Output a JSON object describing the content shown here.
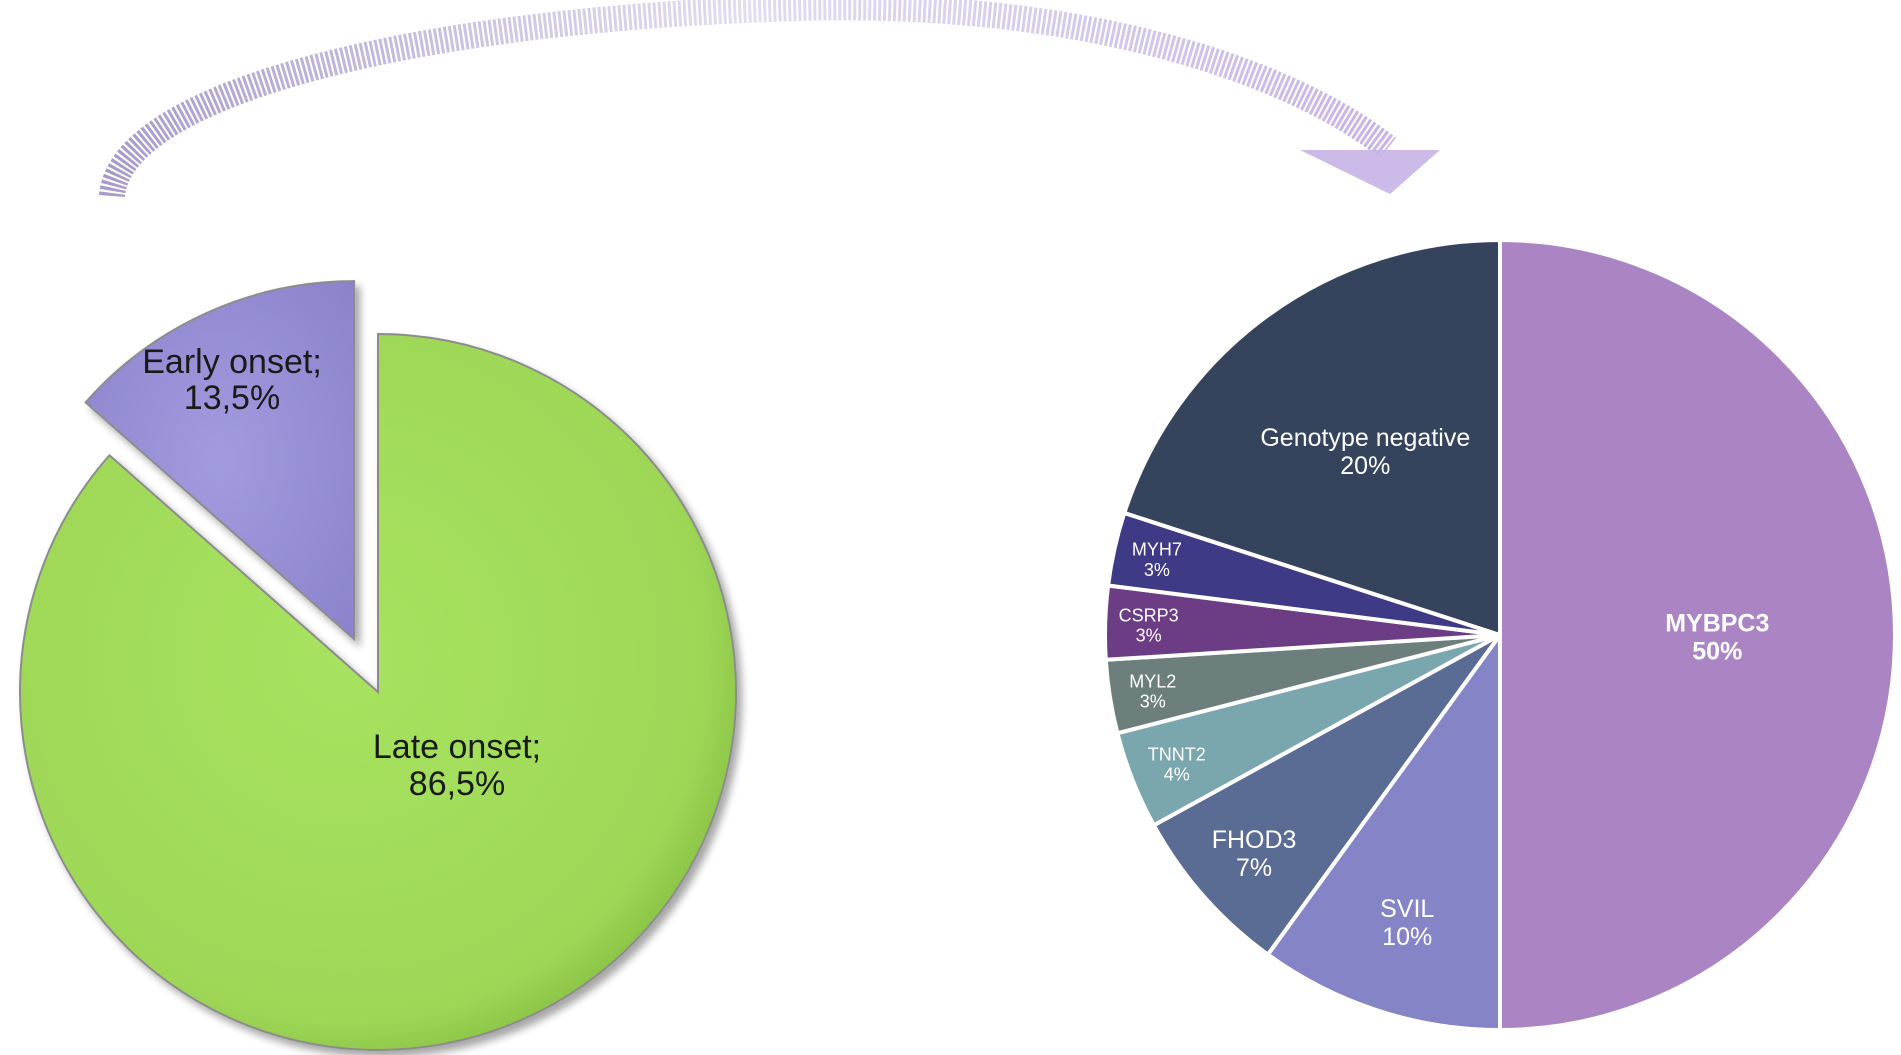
{
  "chart_data": [
    {
      "type": "pie",
      "title": "",
      "labels": [
        "Early onset",
        "Late onset"
      ],
      "values": [
        13.5,
        86.5
      ],
      "display_values": [
        "13,5%",
        "86,5%"
      ],
      "slice_labels": [
        "Early onset;",
        "Late onset;"
      ],
      "colors": [
        "#9d96dc",
        "#a3df5a"
      ],
      "exploded": [
        "Early onset"
      ],
      "style": "3d-beveled",
      "legend": "none"
    },
    {
      "type": "pie",
      "title": "",
      "labels": [
        "MYBPC3",
        "SVIL",
        "FHOD3",
        "TNNT2",
        "MYL2",
        "CSRP3",
        "MYH7",
        "Genotype negative"
      ],
      "values": [
        50,
        10,
        7,
        4,
        3,
        3,
        3,
        20
      ],
      "display_values": [
        "50%",
        "10%",
        "7%",
        "4%",
        "3%",
        "3%",
        "3%",
        "20%"
      ],
      "colors": [
        "#ab84c4",
        "#8584c6",
        "#5a6b94",
        "#7aa7ae",
        "#6d7f7d",
        "#6c3d84",
        "#3e3a86",
        "#35435d"
      ],
      "legend": "none"
    }
  ],
  "arrow": {
    "from": "Early onset",
    "to": "right-pie",
    "color": "#b6a6d8"
  }
}
